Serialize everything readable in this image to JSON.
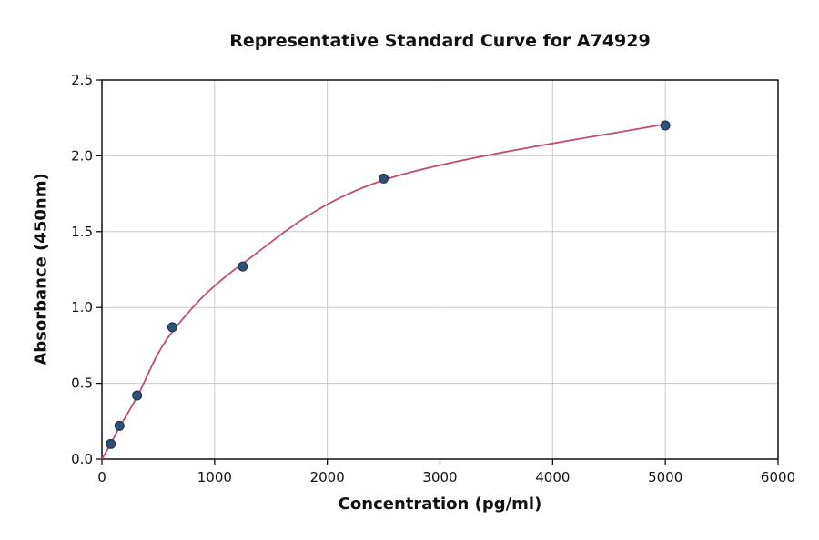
{
  "chart_data": {
    "type": "scatter",
    "title": "Representative Standard Curve for A74929",
    "xlabel": "Concentration (pg/ml)",
    "ylabel": "Absorbance (450nm)",
    "xlim": [
      0,
      6000
    ],
    "ylim": [
      0,
      2.5
    ],
    "xticks": [
      0,
      1000,
      2000,
      3000,
      4000,
      5000,
      6000
    ],
    "xtick_labels": [
      "0",
      "1000",
      "2000",
      "3000",
      "4000",
      "5000",
      "6000"
    ],
    "yticks": [
      0,
      0.5,
      1.0,
      1.5,
      2.0,
      2.5
    ],
    "ytick_labels": [
      "0.0",
      "0.5",
      "1.0",
      "1.5",
      "2.0",
      "2.5"
    ],
    "grid": true,
    "legend": "none",
    "series": [
      {
        "name": "standard-points",
        "type": "scatter",
        "color": "#2f4f74",
        "edge_color": "#1c2f45",
        "x": [
          78,
          156,
          312,
          625,
          1250,
          2500,
          5000
        ],
        "y": [
          0.1,
          0.22,
          0.42,
          0.87,
          1.27,
          1.85,
          2.2
        ]
      },
      {
        "name": "fit-curve",
        "type": "line",
        "color": "#bf4d75",
        "x": [
          0,
          78,
          156,
          312,
          625,
          1250,
          2500,
          5000
        ],
        "y": [
          0.0,
          0.1,
          0.21,
          0.41,
          0.84,
          1.29,
          1.84,
          2.21
        ]
      }
    ],
    "colors": {
      "grid": "#cccccc",
      "axis": "#000000",
      "background": "#ffffff",
      "tick_text": "#111111"
    }
  }
}
